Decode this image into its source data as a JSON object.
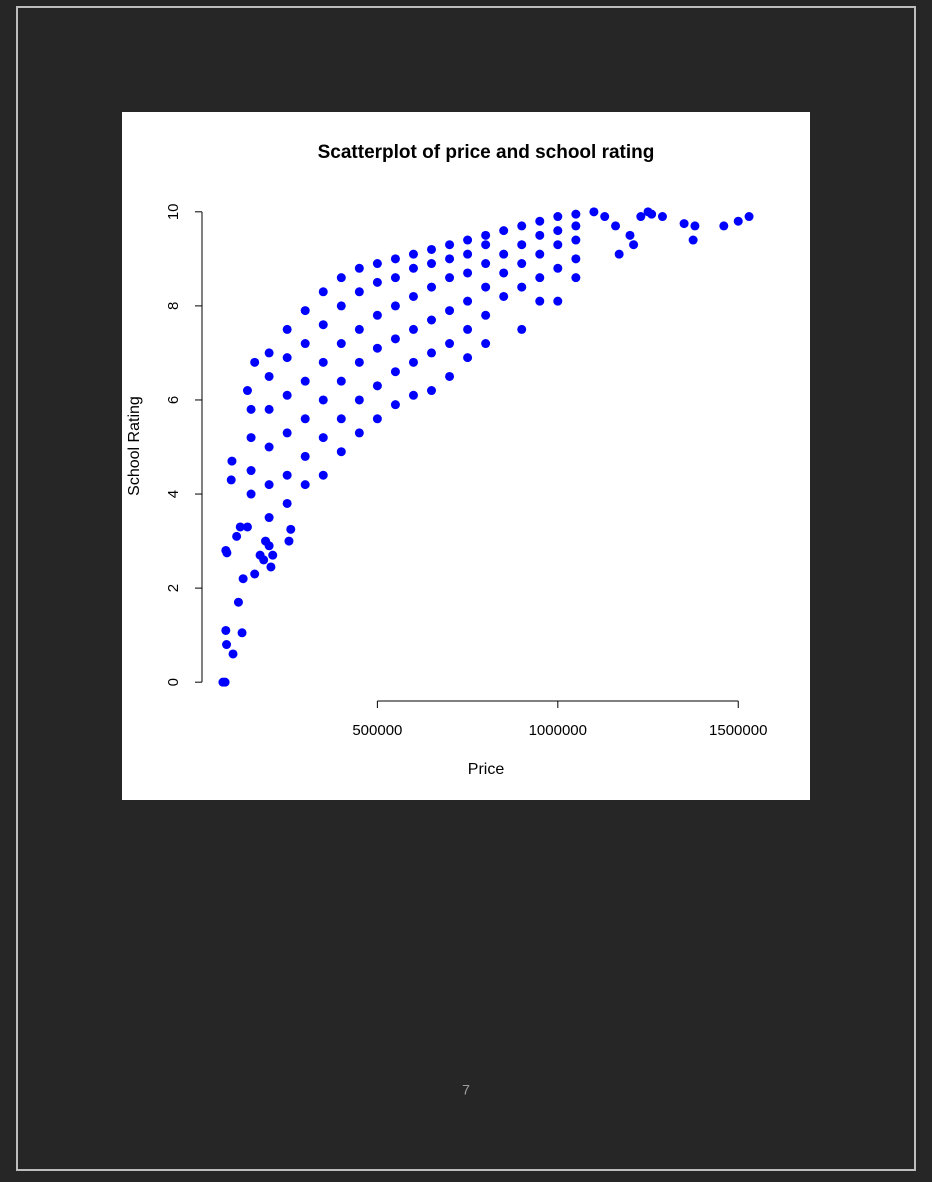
{
  "chart_data": {
    "type": "scatter",
    "title": "Scatterplot of price and school rating",
    "x_label": "Price",
    "y_label": "School Rating",
    "color": "#0000ff",
    "xlim": [
      14000,
      1588000
    ],
    "ylim": [
      -0.4,
      10.4
    ],
    "xticks": [
      500000,
      1000000,
      1500000
    ],
    "yticks": [
      0,
      2,
      4,
      6,
      8,
      10
    ],
    "x": [
      72000,
      78000,
      80000,
      82000,
      100000,
      115000,
      125000,
      80000,
      83000,
      95000,
      97000,
      110000,
      120000,
      128000,
      140000,
      160000,
      175000,
      185000,
      205000,
      210000,
      190000,
      200000,
      255000,
      260000,
      150000,
      200000,
      250000,
      300000,
      350000,
      400000,
      450000,
      500000,
      550000,
      600000,
      650000,
      700000,
      750000,
      800000,
      900000,
      950000,
      1000000,
      1050000,
      140000,
      160000,
      200000,
      250000,
      300000,
      350000,
      400000,
      450000,
      500000,
      550000,
      600000,
      650000,
      700000,
      750000,
      800000,
      850000,
      900000,
      950000,
      1000000,
      1050000,
      1100000,
      1130000,
      1160000,
      1170000,
      1200000,
      1210000,
      1230000,
      1250000,
      1260000,
      1290000,
      1350000,
      1380000,
      1375000,
      1460000,
      1500000,
      1530000,
      150000,
      150000,
      150000,
      200000,
      200000,
      200000,
      200000,
      250000,
      250000,
      250000,
      250000,
      300000,
      300000,
      300000,
      300000,
      350000,
      350000,
      350000,
      350000,
      400000,
      400000,
      400000,
      400000,
      450000,
      450000,
      450000,
      450000,
      500000,
      500000,
      500000,
      500000,
      550000,
      550000,
      550000,
      550000,
      600000,
      600000,
      600000,
      600000,
      650000,
      650000,
      650000,
      650000,
      700000,
      700000,
      700000,
      700000,
      750000,
      750000,
      750000,
      750000,
      800000,
      800000,
      800000,
      800000,
      850000,
      850000,
      850000,
      900000,
      900000,
      900000,
      950000,
      950000,
      950000,
      1000000,
      1000000,
      1000000,
      1050000,
      1050000,
      1050000
    ],
    "y": [
      0,
      0,
      1.1,
      0.8,
      0.6,
      1.7,
      1.05,
      2.8,
      2.75,
      4.3,
      4.7,
      3.1,
      3.3,
      2.2,
      3.3,
      2.3,
      2.7,
      2.6,
      2.45,
      2.7,
      3.0,
      2.9,
      3.0,
      3.25,
      4.0,
      3.5,
      3.8,
      4.2,
      4.4,
      4.9,
      5.3,
      5.6,
      5.9,
      6.1,
      6.2,
      6.5,
      6.9,
      7.2,
      7.5,
      8.1,
      8.1,
      8.6,
      6.2,
      6.8,
      7.0,
      7.5,
      7.9,
      8.3,
      8.6,
      8.8,
      8.9,
      9.0,
      9.1,
      9.2,
      9.3,
      9.4,
      9.5,
      9.6,
      9.7,
      9.8,
      9.9,
      9.95,
      10,
      9.9,
      9.7,
      9.1,
      9.5,
      9.3,
      9.9,
      10,
      9.95,
      9.9,
      9.75,
      9.7,
      9.4,
      9.7,
      9.8,
      9.9,
      4.5,
      5.2,
      5.8,
      4.2,
      5.0,
      5.8,
      6.5,
      4.4,
      5.3,
      6.1,
      6.9,
      4.8,
      5.6,
      6.4,
      7.2,
      5.2,
      6.0,
      6.8,
      7.6,
      5.6,
      6.4,
      7.2,
      8.0,
      6.0,
      6.8,
      7.5,
      8.3,
      6.3,
      7.1,
      7.8,
      8.5,
      6.6,
      7.3,
      8.0,
      8.6,
      6.8,
      7.5,
      8.2,
      8.8,
      7.0,
      7.7,
      8.4,
      8.9,
      7.2,
      7.9,
      8.6,
      9.0,
      7.5,
      8.1,
      8.7,
      9.1,
      7.8,
      8.4,
      8.9,
      9.3,
      8.2,
      8.7,
      9.1,
      8.4,
      8.9,
      9.3,
      8.6,
      9.1,
      9.5,
      8.8,
      9.3,
      9.6,
      9.0,
      9.4,
      9.7
    ]
  },
  "page_number": "7"
}
